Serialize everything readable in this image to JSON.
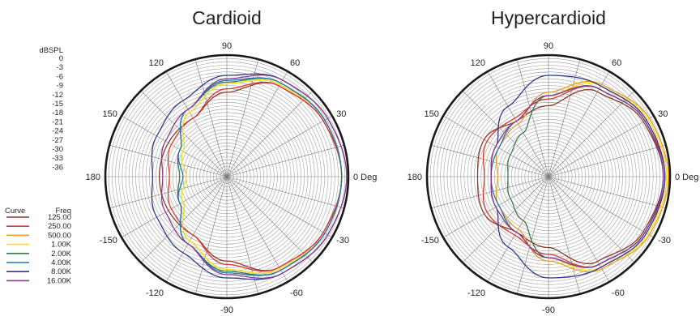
{
  "db_scale": {
    "label": "dBSPL",
    "ticks": [
      "0",
      "-3",
      "-6",
      "-9",
      "-12",
      "-15",
      "-18",
      "-21",
      "-24",
      "-27",
      "-30",
      "-33",
      "-36"
    ]
  },
  "legend": {
    "curve_header": "Curve",
    "freq_header": "Freq",
    "items": [
      {
        "freq": "125.00",
        "color": "#8b3a2b"
      },
      {
        "freq": "250.00",
        "color": "#e2342a"
      },
      {
        "freq": "500.00",
        "color": "#f39a1e"
      },
      {
        "freq": "1.00K",
        "color": "#f2e421"
      },
      {
        "freq": "2.00K",
        "color": "#3c7a4a"
      },
      {
        "freq": "4.00K",
        "color": "#1f76b4"
      },
      {
        "freq": "8.00K",
        "color": "#2b3990"
      },
      {
        "freq": "16.00K",
        "color": "#8e3a8e"
      }
    ]
  },
  "chart_data": [
    {
      "type": "polar",
      "title": "Cardioid",
      "r_range": [
        -36,
        0
      ],
      "r_unit": "dBSPL",
      "angle_ticks": [
        {
          "deg": 0,
          "label": "0 Deg"
        },
        {
          "deg": 30,
          "label": "30"
        },
        {
          "deg": 60,
          "label": "60"
        },
        {
          "deg": 90,
          "label": "90"
        },
        {
          "deg": 120,
          "label": "120"
        },
        {
          "deg": 150,
          "label": "150"
        },
        {
          "deg": 180,
          "label": "180"
        },
        {
          "deg": -150,
          "label": "-150"
        },
        {
          "deg": -120,
          "label": "-120"
        },
        {
          "deg": -90,
          "label": "-90"
        },
        {
          "deg": -60,
          "label": "-60"
        },
        {
          "deg": -30,
          "label": "-30"
        }
      ],
      "angles": [
        0,
        30,
        60,
        90,
        120,
        150,
        180
      ],
      "series": [
        {
          "name": "125.00",
          "color": "#8b3a2b",
          "values": [
            -2,
            -3,
            -5,
            -11,
            -16,
            -16,
            -16
          ]
        },
        {
          "name": "250.00",
          "color": "#e2342a",
          "values": [
            -2,
            -3,
            -5,
            -10,
            -16,
            -17,
            -19
          ]
        },
        {
          "name": "500.00",
          "color": "#f39a1e",
          "values": [
            -2,
            -2.5,
            -4.5,
            -8.5,
            -14,
            -21,
            -24
          ]
        },
        {
          "name": "1.00K",
          "color": "#f2e421",
          "values": [
            -2,
            -2.5,
            -4.5,
            -8.5,
            -14,
            -21,
            -24
          ]
        },
        {
          "name": "2.00K",
          "color": "#3c7a4a",
          "values": [
            -2,
            -2.5,
            -4,
            -8,
            -13,
            -20,
            -22
          ]
        },
        {
          "name": "4.00K",
          "color": "#1f76b4",
          "values": [
            -2,
            -2.5,
            -4,
            -7.5,
            -13,
            -20,
            -23
          ]
        },
        {
          "name": "8.00K",
          "color": "#2b3990",
          "values": [
            -0.5,
            -1.5,
            -3,
            -6,
            -10,
            -12,
            -14
          ]
        },
        {
          "name": "16.00K",
          "color": "#8e3a8e",
          "values": [
            -0.5,
            -1.5,
            -3,
            -7,
            -13,
            -15,
            -17
          ]
        }
      ]
    },
    {
      "type": "polar",
      "title": "Hypercardioid",
      "r_range": [
        -36,
        0
      ],
      "r_unit": "dBSPL",
      "angle_ticks": [
        {
          "deg": 0,
          "label": "0 Deg"
        },
        {
          "deg": 30,
          "label": "30"
        },
        {
          "deg": 60,
          "label": "60"
        },
        {
          "deg": 90,
          "label": "90"
        },
        {
          "deg": 120,
          "label": "120"
        },
        {
          "deg": 150,
          "label": "150"
        },
        {
          "deg": 180,
          "label": "180"
        },
        {
          "deg": -150,
          "label": "-150"
        },
        {
          "deg": -120,
          "label": "-120"
        },
        {
          "deg": -90,
          "label": "-90"
        },
        {
          "deg": -60,
          "label": "-60"
        },
        {
          "deg": -30,
          "label": "-30"
        }
      ],
      "angles": [
        0,
        30,
        60,
        90,
        120,
        150,
        180
      ],
      "series": [
        {
          "name": "125.00",
          "color": "#8b3a2b",
          "values": [
            -2,
            -3.5,
            -7,
            -15,
            -17,
            -14,
            -15
          ]
        },
        {
          "name": "250.00",
          "color": "#e2342a",
          "values": [
            -1.5,
            -3,
            -6,
            -13,
            -16,
            -15,
            -17
          ]
        },
        {
          "name": "500.00",
          "color": "#f39a1e",
          "values": [
            -0.5,
            -1.5,
            -4.5,
            -11,
            -18,
            -19,
            -21
          ]
        },
        {
          "name": "1.00K",
          "color": "#f2e421",
          "values": [
            -1,
            -2,
            -5,
            -12,
            -17,
            -18,
            -19
          ]
        },
        {
          "name": "2.00K",
          "color": "#3c7a4a",
          "values": [
            -2,
            -3,
            -6,
            -12,
            -21,
            -23,
            -24
          ]
        },
        {
          "name": "4.00K",
          "color": "#1f76b4",
          "values": [
            -2,
            -3,
            -6,
            -12,
            -17,
            -19,
            -19
          ]
        },
        {
          "name": "8.00K",
          "color": "#2b3990",
          "values": [
            -1.5,
            -2.5,
            -5,
            -6,
            -12,
            -18,
            -19
          ]
        },
        {
          "name": "16.00K",
          "color": "#8e3a8e",
          "values": [
            -2,
            -3,
            -6,
            -12,
            -17,
            -18,
            -19
          ]
        }
      ]
    }
  ]
}
